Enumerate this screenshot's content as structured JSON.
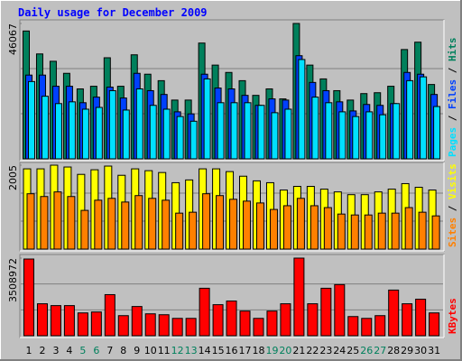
{
  "chart_data": {
    "type": "bar",
    "title": "Daily usage for December 2009",
    "categories": [
      "1",
      "2",
      "3",
      "4",
      "5",
      "6",
      "7",
      "8",
      "9",
      "10",
      "11",
      "12",
      "13",
      "14",
      "15",
      "16",
      "17",
      "18",
      "19",
      "20",
      "21",
      "22",
      "23",
      "24",
      "25",
      "26",
      "27",
      "28",
      "29",
      "30",
      "31"
    ],
    "label_colors": [
      "#000000",
      "#000000",
      "#000000",
      "#000000",
      "#00805c",
      "#00805c",
      "#000000",
      "#000000",
      "#000000",
      "#000000",
      "#000000",
      "#00805c",
      "#00805c",
      "#000000",
      "#000000",
      "#000000",
      "#000000",
      "#000000",
      "#00805c",
      "#00805c",
      "#000000",
      "#000000",
      "#000000",
      "#000000",
      "#000000",
      "#00805c",
      "#00805c",
      "#000000",
      "#000000",
      "#000000",
      "#000000"
    ],
    "legend_separator": "/",
    "panels": [
      {
        "ylim": [
          0,
          46067
        ],
        "yticks": [
          46067
        ],
        "series": [
          {
            "name": "Hits",
            "color": "#00805c",
            "values": [
              43500,
              35700,
              33200,
              29100,
              23800,
              24700,
              34400,
              24700,
              35400,
              28800,
              26600,
              20000,
              20000,
              39400,
              31900,
              29400,
              26600,
              21600,
              23800,
              20400,
              46067,
              31900,
              27200,
              23200,
              20000,
              22200,
              22500,
              24700,
              37200,
              39700,
              25300
            ]
          },
          {
            "name": "Files",
            "color": "#0040ff",
            "values": [
              28500,
              28500,
              24700,
              24700,
              19100,
              21000,
              24400,
              20700,
              29100,
              23200,
              21900,
              16000,
              15300,
              28800,
              24100,
              23800,
              21600,
              18200,
              20400,
              20000,
              35100,
              26000,
              23200,
              19400,
              16300,
              18500,
              18200,
              18800,
              29400,
              28800,
              21900
            ]
          },
          {
            "name": "Pages",
            "color": "#00e0ff",
            "values": [
              26300,
              21300,
              18800,
              19400,
              16900,
              17500,
              23200,
              16600,
              23800,
              18200,
              16900,
              14400,
              12800,
              27200,
              19100,
              19100,
              19100,
              18200,
              15700,
              16900,
              33800,
              21000,
              19100,
              16000,
              14400,
              16000,
              15000,
              18800,
              26600,
              27900,
              17800
            ]
          }
        ]
      },
      {
        "ylim": [
          0,
          2005
        ],
        "yticks": [
          2005
        ],
        "series": [
          {
            "name": "Visits",
            "color": "#ffff00",
            "values": [
              1917,
              1917,
              2005,
              1961,
              1785,
              1895,
              1983,
              1763,
              1917,
              1873,
              1829,
              1586,
              1652,
              1917,
              1917,
              1851,
              1741,
              1630,
              1586,
              1410,
              1498,
              1498,
              1432,
              1366,
              1300,
              1300,
              1366,
              1432,
              1564,
              1476,
              1410
            ]
          },
          {
            "name": "Sites",
            "color": "#ff8000",
            "values": [
              1322,
              1256,
              1366,
              1256,
              925,
              1168,
              1212,
              1124,
              1278,
              1212,
              1168,
              859,
              881,
              1322,
              1278,
              1190,
              1146,
              1102,
              947,
              1036,
              1212,
              1036,
              991,
              837,
              815,
              815,
              859,
              859,
              991,
              881,
              793
            ]
          }
        ]
      },
      {
        "ylim": [
          0,
          3508972
        ],
        "yticks": [
          3508972
        ],
        "series": [
          {
            "name": "KBytes",
            "color": "#ff0000",
            "values": [
              3467700,
              1444900,
              1362300,
              1362300,
              1032000,
              1073300,
              1857700,
              908200,
              1321000,
              990800,
              949500,
              784400,
              784400,
              2146700,
              1403600,
              1568700,
              1114600,
              784400,
              1114600,
              1444900,
              3508972,
              1444900,
              2146700,
              2311800,
              866900,
              784400,
              908200,
              2064100,
              1444900,
              1651300,
              1032000
            ]
          }
        ]
      }
    ]
  }
}
